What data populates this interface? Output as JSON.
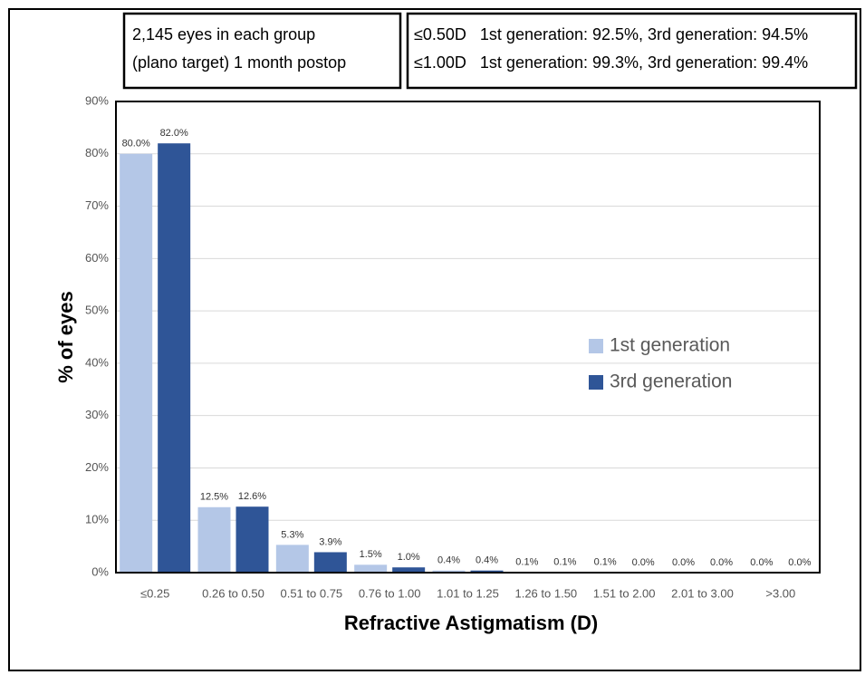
{
  "chart_data": {
    "type": "bar",
    "annotations": [
      [
        "2,145 eyes in each group",
        "(plano target) 1 month postop"
      ],
      [
        "≤0.50D   1st generation: 92.5%, 3rd generation: 94.5%",
        "≤1.00D   1st generation: 99.3%, 3rd generation: 99.4%"
      ]
    ],
    "xlabel": "Refractive Astigmatism (D)",
    "ylabel": "% of eyes",
    "categories": [
      "≤0.25",
      "0.26 to 0.50",
      "0.51 to 0.75",
      "0.76 to 1.00",
      "1.01 to 1.25",
      "1.26 to 1.50",
      "1.51 to 2.00",
      "2.01 to 3.00",
      ">3.00"
    ],
    "series": [
      {
        "name": "1st generation",
        "color": "#b4c7e7",
        "values": [
          80.0,
          12.5,
          5.3,
          1.5,
          0.4,
          0.1,
          0.1,
          0.0,
          0.0
        ],
        "value_labels": [
          "80.0%",
          "12.5%",
          "5.3%",
          "1.5%",
          "0.4%",
          "0.1%",
          "0.1%",
          "0.0%",
          "0.0%"
        ]
      },
      {
        "name": "3rd generation",
        "color": "#2f5597",
        "values": [
          82.0,
          12.6,
          3.9,
          1.0,
          0.4,
          0.1,
          0.0,
          0.0,
          0.0
        ],
        "value_labels": [
          "82.0%",
          "12.6%",
          "3.9%",
          "1.0%",
          "0.4%",
          "0.1%",
          "0.0%",
          "0.0%",
          "0.0%"
        ]
      }
    ],
    "ylim": [
      0,
      90
    ],
    "yticks": [
      {
        "value": 0,
        "label": "0%"
      },
      {
        "value": 10,
        "label": "10%"
      },
      {
        "value": 20,
        "label": "20%"
      },
      {
        "value": 30,
        "label": "30%"
      },
      {
        "value": 40,
        "label": "40%"
      },
      {
        "value": 50,
        "label": "50%"
      },
      {
        "value": 60,
        "label": "60%"
      },
      {
        "value": 70,
        "label": "70%"
      },
      {
        "value": 80,
        "label": "80%"
      },
      {
        "value": 90,
        "label": "90%"
      }
    ],
    "grid": true,
    "legend": "right"
  }
}
